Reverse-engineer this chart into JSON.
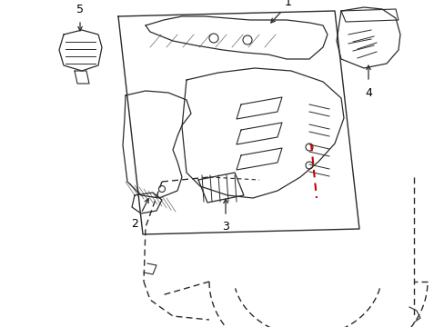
{
  "background_color": "#ffffff",
  "line_color": "#2a2a2a",
  "red_dashed_color": "#cc0000",
  "label_color": "#000000",
  "figsize": [
    4.89,
    3.6
  ],
  "dpi": 100
}
